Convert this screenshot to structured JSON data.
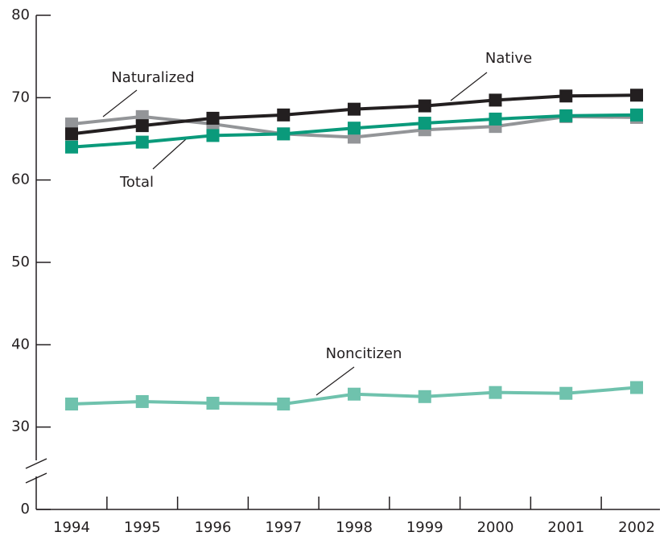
{
  "chart_data": {
    "type": "line",
    "categories": [
      "1994",
      "1995",
      "1996",
      "1997",
      "1998",
      "1999",
      "2000",
      "2001",
      "2002"
    ],
    "series": [
      {
        "name": "Naturalized",
        "color": "#939598",
        "values": [
          66.8,
          67.7,
          66.8,
          65.6,
          65.2,
          66.1,
          66.5,
          67.7,
          67.6
        ]
      },
      {
        "name": "Native",
        "color": "#231f20",
        "values": [
          65.6,
          66.6,
          67.5,
          67.9,
          68.6,
          69.0,
          69.7,
          70.2,
          70.3
        ]
      },
      {
        "name": "Total",
        "color": "#0a9a7b",
        "values": [
          64.0,
          64.6,
          65.4,
          65.6,
          66.3,
          66.9,
          67.4,
          67.8,
          67.9
        ]
      },
      {
        "name": "Noncitizen",
        "color": "#6fc2ad",
        "values": [
          32.8,
          33.1,
          32.9,
          32.8,
          34.0,
          33.7,
          34.2,
          34.1,
          34.8
        ]
      }
    ],
    "ylim": [
      0,
      80
    ],
    "yticks": [
      0,
      30,
      40,
      50,
      60,
      70,
      80
    ],
    "axis_break": [
      0,
      20
    ]
  }
}
